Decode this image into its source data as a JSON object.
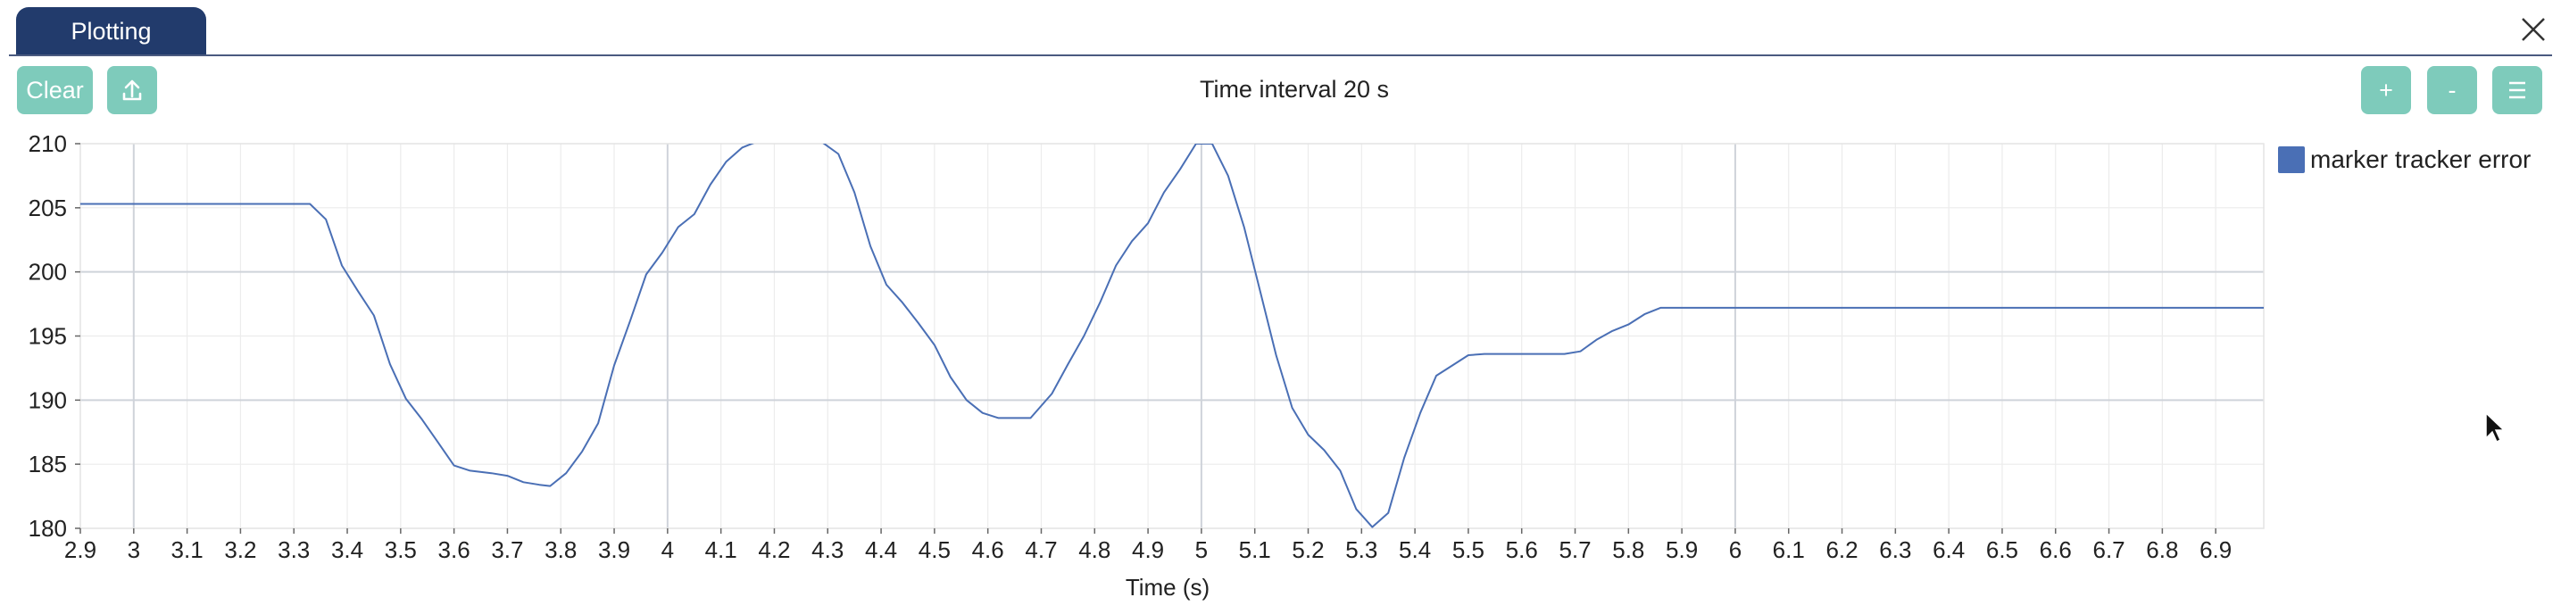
{
  "tab": {
    "label": "Plotting"
  },
  "toolbar": {
    "clear_label": "Clear",
    "zoom_in_label": "+",
    "zoom_out_label": "-"
  },
  "title": "Time interval 20 s",
  "colors": {
    "tab_bg": "#223b6c",
    "button_bg": "#7ecbbb",
    "series": "#4a6fb5",
    "grid": "#ececec",
    "major_grid": "#cfd3da"
  },
  "icons": {
    "close": "close-icon",
    "export": "upload-icon",
    "menu": "hamburger-icon"
  },
  "chart_data": {
    "type": "line",
    "title": "",
    "xlabel": "Time (s)",
    "ylabel": "",
    "xlim": [
      2.9,
      6.99
    ],
    "ylim": [
      180,
      210
    ],
    "xticks": [
      2.9,
      3,
      3.1,
      3.2,
      3.3,
      3.4,
      3.5,
      3.6,
      3.7,
      3.8,
      3.9,
      4,
      4.1,
      4.2,
      4.3,
      4.4,
      4.5,
      4.6,
      4.7,
      4.8,
      4.9,
      5,
      5.1,
      5.2,
      5.3,
      5.4,
      5.5,
      5.6,
      5.7,
      5.8,
      5.9,
      6,
      6.1,
      6.2,
      6.3,
      6.4,
      6.5,
      6.6,
      6.7,
      6.8,
      6.9
    ],
    "yticks": [
      180,
      185,
      190,
      195,
      200,
      205,
      210
    ],
    "grid": true,
    "legend_position": "top-right",
    "series": [
      {
        "name": "marker tracker error",
        "x": [
          2.9,
          3.0,
          3.1,
          3.2,
          3.33,
          3.36,
          3.39,
          3.42,
          3.45,
          3.48,
          3.51,
          3.54,
          3.57,
          3.6,
          3.63,
          3.67,
          3.7,
          3.73,
          3.76,
          3.78,
          3.81,
          3.84,
          3.87,
          3.9,
          3.93,
          3.96,
          3.99,
          4.02,
          4.05,
          4.08,
          4.11,
          4.14,
          4.17,
          4.2,
          4.23,
          4.26,
          4.29,
          4.32,
          4.35,
          4.38,
          4.41,
          4.44,
          4.47,
          4.5,
          4.53,
          4.56,
          4.59,
          4.62,
          4.65,
          4.68,
          4.72,
          4.75,
          4.78,
          4.81,
          4.84,
          4.87,
          4.9,
          4.93,
          4.96,
          4.99,
          5.02,
          5.05,
          5.08,
          5.11,
          5.14,
          5.17,
          5.2,
          5.23,
          5.26,
          5.29,
          5.32,
          5.35,
          5.38,
          5.41,
          5.44,
          5.47,
          5.5,
          5.53,
          5.56,
          5.59,
          5.62,
          5.65,
          5.68,
          5.71,
          5.74,
          5.77,
          5.8,
          5.83,
          5.86,
          6.0,
          6.5,
          6.99
        ],
        "y": [
          205.3,
          205.3,
          205.3,
          205.3,
          205.3,
          204.1,
          200.5,
          198.5,
          196.6,
          192.8,
          190.1,
          188.5,
          186.7,
          184.9,
          184.5,
          184.3,
          184.1,
          183.6,
          183.4,
          183.3,
          184.3,
          186.0,
          188.2,
          192.7,
          196.2,
          199.8,
          201.5,
          203.5,
          204.5,
          206.8,
          208.6,
          209.7,
          210.2,
          210.4,
          210.3,
          210.2,
          210.1,
          209.2,
          206.2,
          202.0,
          199.0,
          197.6,
          196.0,
          194.3,
          191.8,
          190.0,
          189.0,
          188.6,
          188.6,
          188.6,
          190.5,
          192.8,
          195.0,
          197.6,
          200.5,
          202.4,
          203.8,
          206.2,
          208.0,
          210.0,
          210.0,
          207.5,
          203.5,
          198.5,
          193.5,
          189.4,
          187.3,
          186.1,
          184.5,
          181.5,
          180.1,
          181.2,
          185.5,
          189.0,
          191.9,
          192.7,
          193.5,
          193.6,
          193.6,
          193.6,
          193.6,
          193.6,
          193.6,
          193.8,
          194.7,
          195.4,
          195.9,
          196.7,
          197.2,
          197.2,
          197.2,
          197.2
        ]
      }
    ]
  }
}
